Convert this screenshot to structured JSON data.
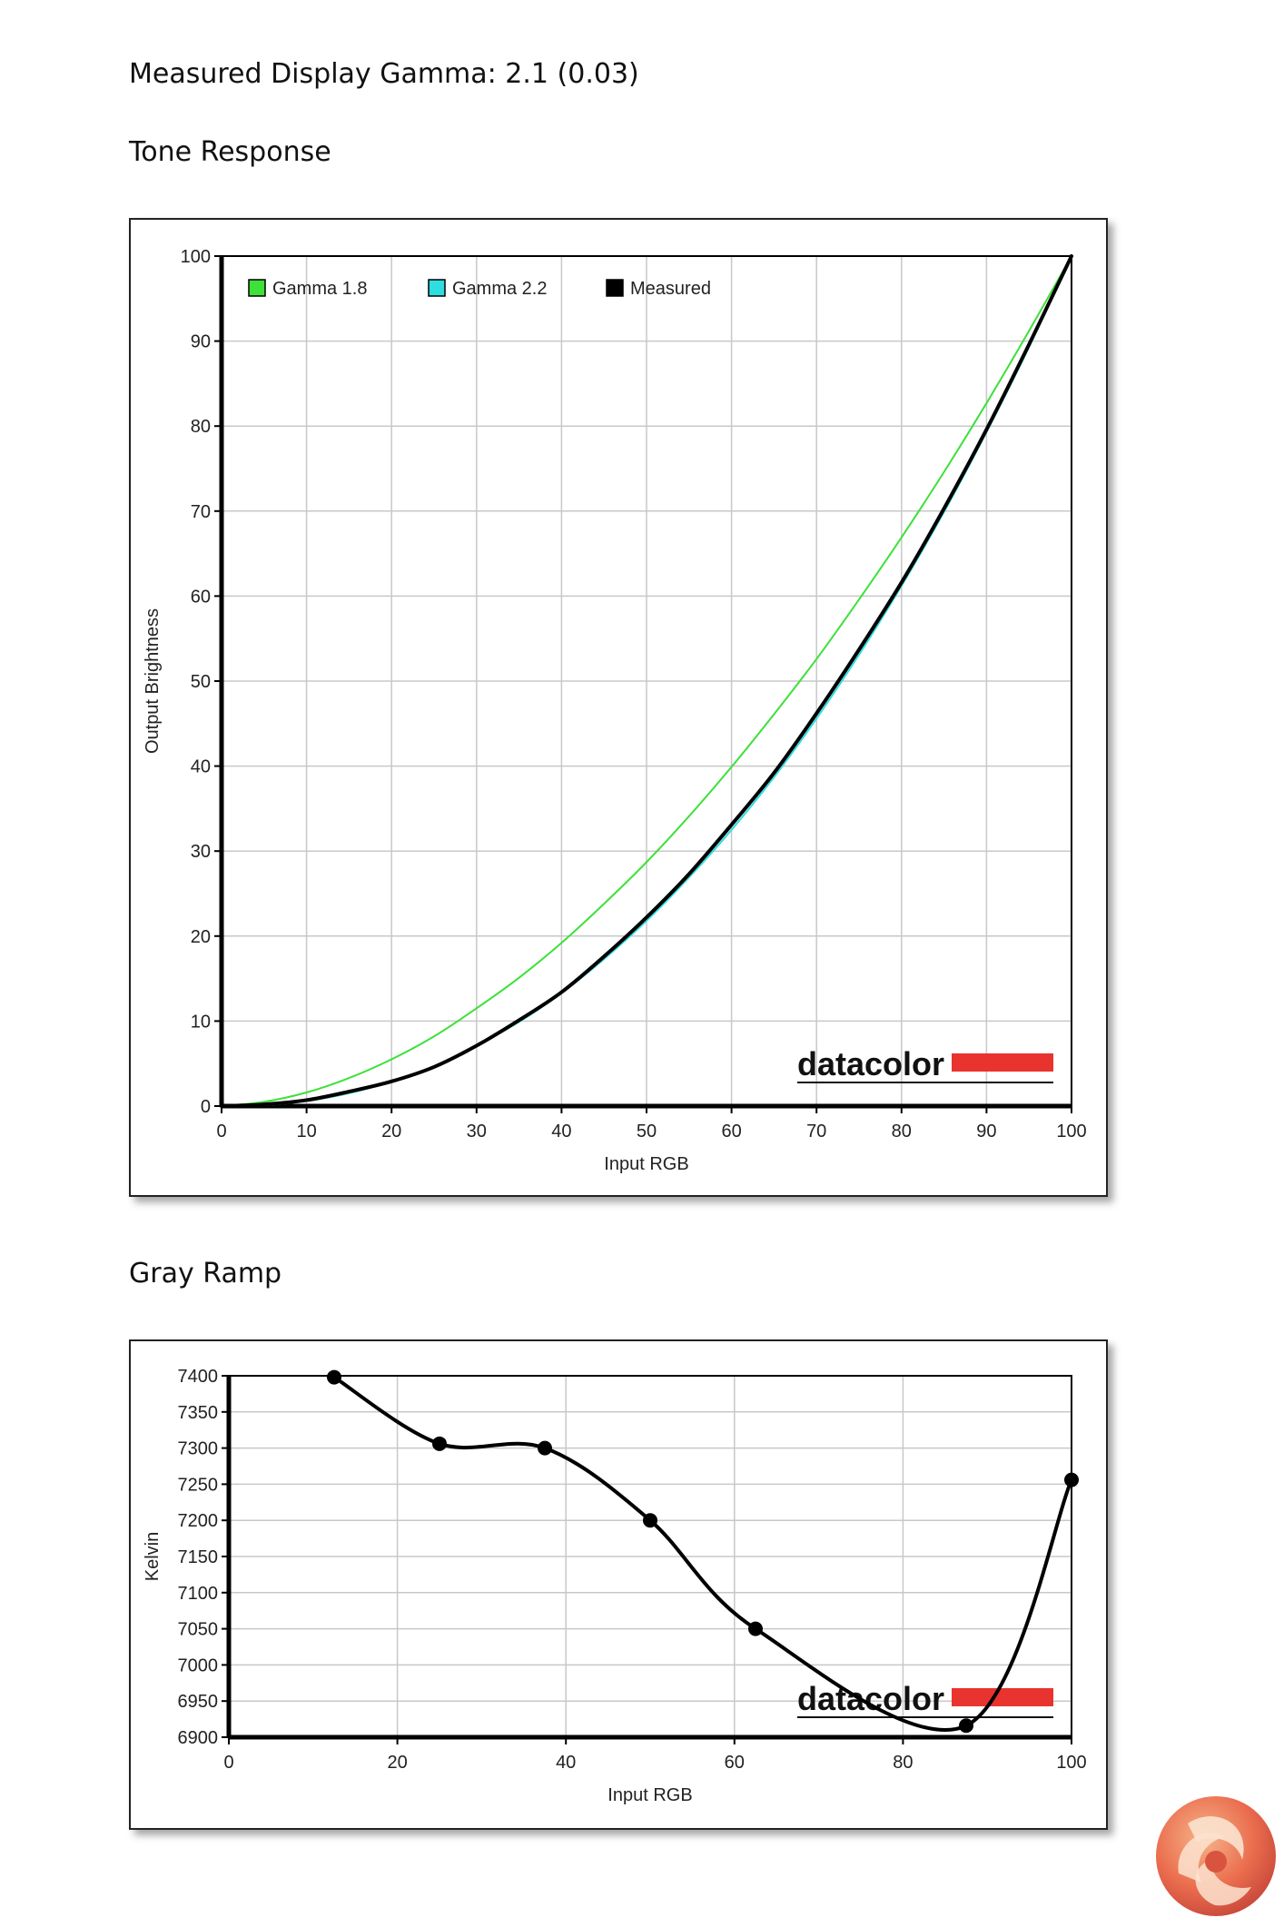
{
  "page": {
    "gamma_title": "Measured Display Gamma: 2.1 (0.03)",
    "tone_title": "Tone Response",
    "gray_title": "Gray Ramp",
    "watermark": "datacolor"
  },
  "chart_data": [
    {
      "type": "line",
      "title": "Tone Response",
      "xlabel": "Input RGB",
      "ylabel": "Output Brightness",
      "xlim": [
        0,
        100
      ],
      "ylim": [
        0,
        100
      ],
      "xticks": [
        "0",
        "10",
        "20",
        "30",
        "40",
        "50",
        "60",
        "70",
        "80",
        "90",
        "100"
      ],
      "yticks": [
        "0",
        "10",
        "20",
        "30",
        "40",
        "50",
        "60",
        "70",
        "80",
        "90",
        "100"
      ],
      "grid": true,
      "legend": "top-left",
      "x": [
        0,
        5,
        10,
        15,
        20,
        25,
        30,
        35,
        40,
        45,
        50,
        55,
        60,
        65,
        70,
        75,
        80,
        85,
        90,
        95,
        100
      ],
      "series": [
        {
          "name": "Gamma 1.8",
          "color": "#3ee03a",
          "marker": false,
          "values": [
            0,
            0.5,
            1.6,
            3.3,
            5.5,
            8.2,
            11.5,
            15.1,
            19.2,
            23.8,
            28.7,
            34.1,
            39.9,
            46.1,
            52.6,
            59.6,
            66.9,
            74.6,
            82.7,
            91.2,
            100
          ]
        },
        {
          "name": "Gamma 2.2",
          "color": "#2fdde0",
          "marker": false,
          "values": [
            0,
            0.1,
            0.6,
            1.5,
            2.9,
            4.7,
            7.1,
            9.9,
            13.3,
            17.3,
            21.8,
            26.9,
            32.5,
            38.7,
            45.6,
            53.1,
            61.2,
            69.9,
            79.3,
            89.3,
            100
          ]
        },
        {
          "name": "Measured",
          "color": "#000000",
          "marker": false,
          "values": [
            0,
            0.2,
            0.7,
            1.7,
            2.9,
            4.6,
            7.1,
            10.1,
            13.4,
            17.6,
            22.2,
            27.3,
            33.1,
            39.2,
            46.2,
            53.7,
            61.6,
            70.3,
            79.6,
            89.6,
            100
          ]
        }
      ]
    },
    {
      "type": "line",
      "title": "Gray Ramp",
      "xlabel": "Input RGB",
      "ylabel": "Kelvin",
      "xlim": [
        0,
        100
      ],
      "ylim": [
        6900,
        7400
      ],
      "xticks": [
        "0",
        "20",
        "40",
        "60",
        "80",
        "100"
      ],
      "yticks": [
        "6900",
        "6950",
        "7000",
        "7050",
        "7100",
        "7150",
        "7200",
        "7250",
        "7300",
        "7350",
        "7400"
      ],
      "grid": true,
      "series": [
        {
          "name": "",
          "color": "#000000",
          "marker": true,
          "x": [
            12.5,
            25,
            37.5,
            50,
            62.5,
            87.5,
            100
          ],
          "values": [
            7398,
            7306,
            7300,
            7200,
            7050,
            6916,
            7256
          ]
        }
      ]
    }
  ]
}
